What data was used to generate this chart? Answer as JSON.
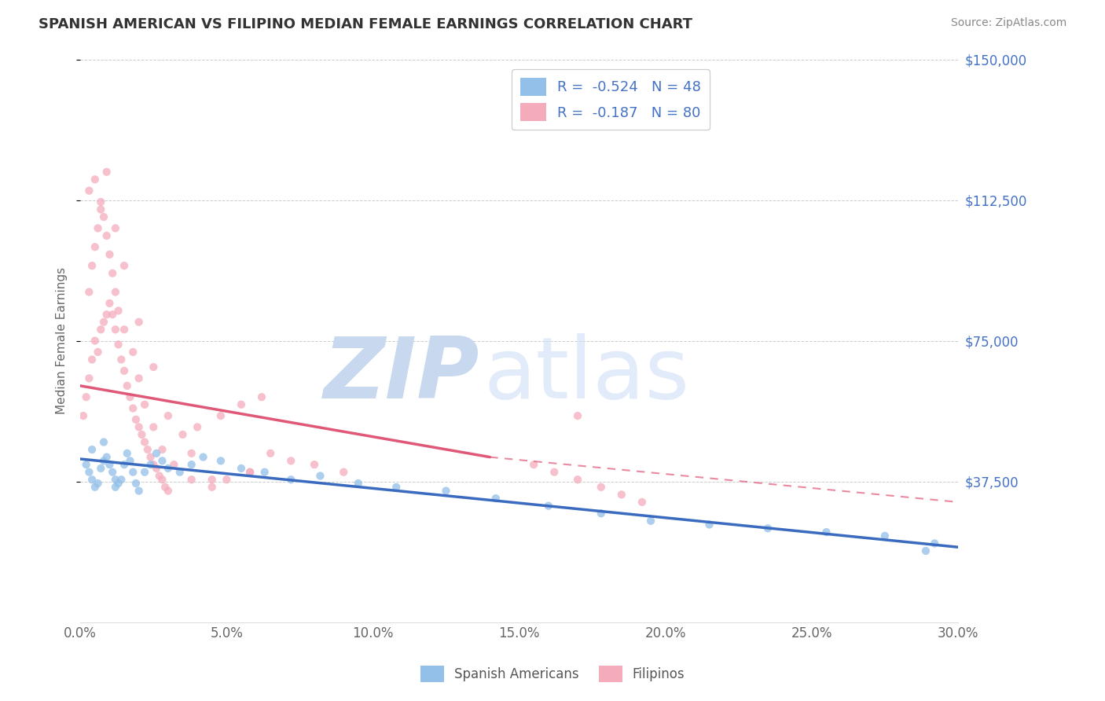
{
  "title": "SPANISH AMERICAN VS FILIPINO MEDIAN FEMALE EARNINGS CORRELATION CHART",
  "source_text": "Source: ZipAtlas.com",
  "ylabel": "Median Female Earnings",
  "xlim": [
    0.0,
    0.3
  ],
  "ylim": [
    0,
    150000
  ],
  "yticks": [
    37500,
    75000,
    112500,
    150000
  ],
  "ytick_labels": [
    "$37,500",
    "$75,000",
    "$112,500",
    "$150,000"
  ],
  "xticks": [
    0.0,
    0.05,
    0.1,
    0.15,
    0.2,
    0.25,
    0.3
  ],
  "xtick_labels": [
    "0.0%",
    "5.0%",
    "10.0%",
    "15.0%",
    "20.0%",
    "25.0%",
    "30.0%"
  ],
  "blue_color": "#92C0E8",
  "pink_color": "#F4ACBC",
  "trend_blue_color": "#3A6BBF",
  "trend_pink_color": "#E05878",
  "legend_label1": "R =  -0.524   N = 48",
  "legend_label2": "R =  -0.187   N = 80",
  "watermark_zip": "ZIP",
  "watermark_atlas": "atlas",
  "watermark_color": "#C8D8EE",
  "blue_x": [
    0.002,
    0.003,
    0.004,
    0.005,
    0.006,
    0.007,
    0.008,
    0.009,
    0.01,
    0.011,
    0.012,
    0.013,
    0.014,
    0.015,
    0.016,
    0.017,
    0.018,
    0.019,
    0.02,
    0.022,
    0.024,
    0.026,
    0.028,
    0.03,
    0.034,
    0.038,
    0.042,
    0.048,
    0.055,
    0.063,
    0.072,
    0.082,
    0.095,
    0.108,
    0.125,
    0.142,
    0.16,
    0.178,
    0.195,
    0.215,
    0.235,
    0.255,
    0.275,
    0.292,
    0.004,
    0.008,
    0.012,
    0.289
  ],
  "blue_y": [
    42000,
    40000,
    38000,
    36000,
    37000,
    41000,
    43000,
    44000,
    42000,
    40000,
    38000,
    37000,
    38000,
    42000,
    45000,
    43000,
    40000,
    37000,
    35000,
    40000,
    42000,
    45000,
    43000,
    41000,
    40000,
    42000,
    44000,
    43000,
    41000,
    40000,
    38000,
    39000,
    37000,
    36000,
    35000,
    33000,
    31000,
    29000,
    27000,
    26000,
    25000,
    24000,
    23000,
    21000,
    46000,
    48000,
    36000,
    19000
  ],
  "pink_x": [
    0.001,
    0.002,
    0.003,
    0.004,
    0.005,
    0.006,
    0.007,
    0.008,
    0.009,
    0.01,
    0.011,
    0.012,
    0.013,
    0.014,
    0.015,
    0.016,
    0.017,
    0.018,
    0.019,
    0.02,
    0.021,
    0.022,
    0.023,
    0.024,
    0.025,
    0.026,
    0.027,
    0.028,
    0.029,
    0.03,
    0.003,
    0.004,
    0.005,
    0.006,
    0.007,
    0.008,
    0.009,
    0.01,
    0.011,
    0.012,
    0.013,
    0.015,
    0.018,
    0.02,
    0.022,
    0.025,
    0.028,
    0.032,
    0.038,
    0.045,
    0.05,
    0.058,
    0.065,
    0.072,
    0.08,
    0.09,
    0.003,
    0.005,
    0.007,
    0.009,
    0.012,
    0.015,
    0.02,
    0.025,
    0.03,
    0.038,
    0.045,
    0.058,
    0.155,
    0.162,
    0.17,
    0.178,
    0.185,
    0.192,
    0.17,
    0.062,
    0.055,
    0.048,
    0.04,
    0.035
  ],
  "pink_y": [
    55000,
    60000,
    65000,
    70000,
    75000,
    72000,
    78000,
    80000,
    82000,
    85000,
    82000,
    78000,
    74000,
    70000,
    67000,
    63000,
    60000,
    57000,
    54000,
    52000,
    50000,
    48000,
    46000,
    44000,
    42000,
    41000,
    39000,
    38000,
    36000,
    35000,
    88000,
    95000,
    100000,
    105000,
    110000,
    108000,
    103000,
    98000,
    93000,
    88000,
    83000,
    78000,
    72000,
    65000,
    58000,
    52000,
    46000,
    42000,
    38000,
    36000,
    38000,
    40000,
    45000,
    43000,
    42000,
    40000,
    115000,
    118000,
    112000,
    120000,
    105000,
    95000,
    80000,
    68000,
    55000,
    45000,
    38000,
    40000,
    42000,
    40000,
    38000,
    36000,
    34000,
    32000,
    55000,
    60000,
    58000,
    55000,
    52000,
    50000
  ],
  "trend_blue_x0": 0.0,
  "trend_blue_x1": 0.3,
  "trend_blue_y0": 43500,
  "trend_blue_y1": 20000,
  "trend_pink_solid_x0": 0.0,
  "trend_pink_solid_x1": 0.14,
  "trend_pink_y0": 63000,
  "trend_pink_y1": 44000,
  "trend_pink_dash_x0": 0.14,
  "trend_pink_dash_x1": 0.3,
  "trend_pink_dash_y0": 44000,
  "trend_pink_dash_y1": 32000
}
